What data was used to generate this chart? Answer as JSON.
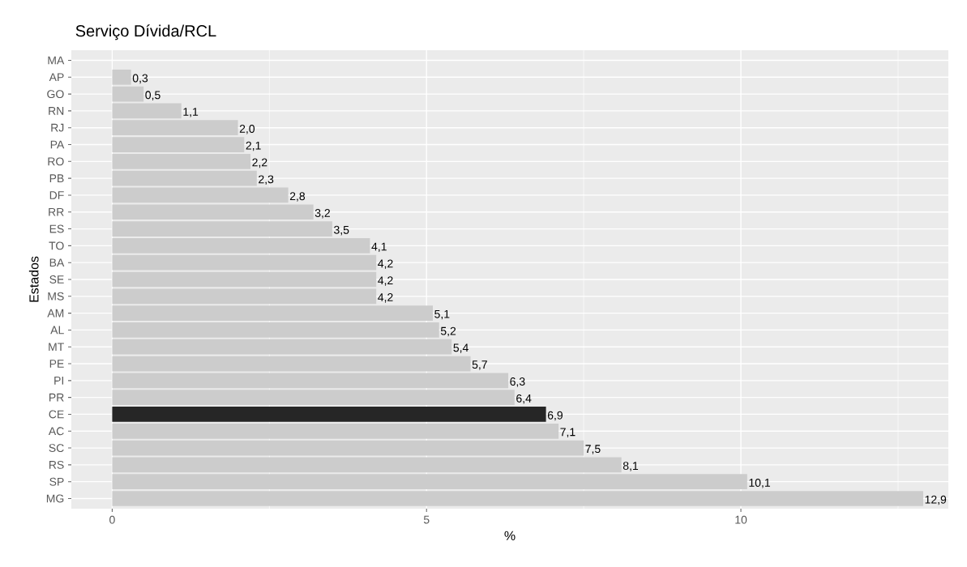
{
  "chart_data": {
    "type": "bar",
    "orientation": "horizontal",
    "title": "Serviço Dívida/RCL",
    "xlabel": "%",
    "ylabel": "Estados",
    "categories": [
      "MA",
      "AP",
      "GO",
      "RN",
      "RJ",
      "PA",
      "RO",
      "PB",
      "DF",
      "RR",
      "ES",
      "TO",
      "BA",
      "SE",
      "MS",
      "AM",
      "AL",
      "MT",
      "PE",
      "PI",
      "PR",
      "CE",
      "AC",
      "SC",
      "RS",
      "SP",
      "MG"
    ],
    "values": [
      null,
      0.3,
      0.5,
      1.1,
      2.0,
      2.1,
      2.2,
      2.3,
      2.8,
      3.2,
      3.5,
      4.1,
      4.2,
      4.2,
      4.2,
      5.1,
      5.2,
      5.4,
      5.7,
      6.3,
      6.4,
      6.9,
      7.1,
      7.5,
      8.1,
      10.1,
      12.9
    ],
    "value_labels": [
      null,
      "0,3",
      "0,5",
      "1,1",
      "2,0",
      "2,1",
      "2,2",
      "2,3",
      "2,8",
      "3,2",
      "3,5",
      "4,1",
      "4,2",
      "4,2",
      "4,2",
      "5,1",
      "5,2",
      "5,4",
      "5,7",
      "6,3",
      "6,4",
      "6,9",
      "7,1",
      "7,5",
      "8,1",
      "10,1",
      "12,9"
    ],
    "colors": [
      "#cccccc",
      "#cccccc",
      "#cccccc",
      "#cccccc",
      "#cccccc",
      "#cccccc",
      "#cccccc",
      "#cccccc",
      "#cccccc",
      "#cccccc",
      "#cccccc",
      "#cccccc",
      "#cccccc",
      "#cccccc",
      "#cccccc",
      "#cccccc",
      "#cccccc",
      "#cccccc",
      "#cccccc",
      "#cccccc",
      "#cccccc",
      "#262626",
      "#cccccc",
      "#cccccc",
      "#cccccc",
      "#cccccc",
      "#cccccc"
    ],
    "xlim": [
      -0.65,
      13.3
    ],
    "xticks": [
      0,
      5,
      10
    ],
    "grid": true
  }
}
